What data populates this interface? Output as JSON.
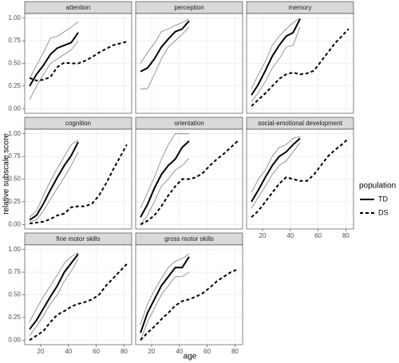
{
  "chart_data": {
    "type": "line",
    "xlabel": "age",
    "ylabel": "relative subscale score",
    "legend_title": "population",
    "xlim": [
      8.5,
      85.5
    ],
    "xticks": [
      20,
      40,
      60,
      80
    ],
    "ylim": [
      -0.05,
      1.05
    ],
    "yticks": [
      {
        "value": 0,
        "label": "0.00"
      },
      {
        "value": 0.25,
        "label": "0.25"
      },
      {
        "value": 0.5,
        "label": "0.50"
      },
      {
        "value": 0.75,
        "label": "0.75"
      },
      {
        "value": 1,
        "label": "1.00"
      }
    ],
    "grid": true,
    "panels": [
      {
        "title": "attention",
        "series": [
          {
            "name": "TD",
            "color": "#000000",
            "linestyle": "solid",
            "x": [
              12,
              17,
              22,
              27,
              32,
              37,
              42,
              47
            ],
            "values": [
              0.25,
              0.38,
              0.48,
              0.6,
              0.67,
              0.7,
              0.73,
              0.84
            ],
            "lower": [
              0.1,
              0.25,
              0.38,
              0.5,
              0.55,
              0.6,
              0.65,
              0.75
            ],
            "upper": [
              0.33,
              0.48,
              0.62,
              0.78,
              0.8,
              0.85,
              0.9,
              0.96
            ]
          },
          {
            "name": "DS",
            "color": "#000000",
            "linestyle": "dashed",
            "x": [
              12,
              17,
              22,
              27,
              32,
              37,
              42,
              47,
              52,
              57,
              62,
              67,
              72,
              77,
              82
            ],
            "values": [
              0.34,
              0.31,
              0.32,
              0.35,
              0.46,
              0.51,
              0.5,
              0.5,
              0.53,
              0.57,
              0.62,
              0.66,
              0.7,
              0.72,
              0.74
            ]
          }
        ]
      },
      {
        "title": "perception",
        "series": [
          {
            "name": "TD",
            "color": "#000000",
            "linestyle": "solid",
            "x": [
              12,
              17,
              22,
              27,
              32,
              37,
              42,
              47
            ],
            "values": [
              0.41,
              0.45,
              0.55,
              0.68,
              0.77,
              0.85,
              0.88,
              0.97
            ],
            "lower": [
              0.22,
              0.22,
              0.38,
              0.55,
              0.68,
              0.75,
              0.82,
              0.9
            ],
            "upper": [
              0.5,
              0.62,
              0.72,
              0.85,
              0.88,
              0.92,
              0.95,
              0.99
            ]
          }
        ]
      },
      {
        "title": "memory",
        "series": [
          {
            "name": "TD",
            "color": "#000000",
            "linestyle": "solid",
            "x": [
              12,
              17,
              22,
              27,
              32,
              37,
              42,
              47
            ],
            "values": [
              0.15,
              0.27,
              0.42,
              0.58,
              0.7,
              0.8,
              0.84,
              0.99
            ],
            "lower": [
              0.08,
              0.18,
              0.3,
              0.45,
              0.55,
              0.68,
              0.7,
              0.9
            ],
            "upper": [
              0.22,
              0.38,
              0.52,
              0.7,
              0.8,
              0.88,
              0.95,
              1.0
            ]
          },
          {
            "name": "DS",
            "color": "#000000",
            "linestyle": "dashed",
            "x": [
              12,
              17,
              22,
              27,
              32,
              37,
              42,
              47,
              52,
              57,
              62,
              67,
              72,
              77,
              82
            ],
            "values": [
              0.03,
              0.1,
              0.17,
              0.25,
              0.33,
              0.38,
              0.4,
              0.38,
              0.39,
              0.42,
              0.52,
              0.62,
              0.72,
              0.8,
              0.88
            ]
          }
        ]
      },
      {
        "title": "cognition",
        "series": [
          {
            "name": "TD",
            "color": "#000000",
            "linestyle": "solid",
            "x": [
              12,
              17,
              22,
              27,
              32,
              37,
              42,
              47
            ],
            "values": [
              0.05,
              0.1,
              0.23,
              0.38,
              0.52,
              0.65,
              0.76,
              0.91
            ],
            "lower": [
              0.03,
              0.05,
              0.15,
              0.28,
              0.4,
              0.52,
              0.65,
              0.8
            ],
            "upper": [
              0.08,
              0.15,
              0.32,
              0.48,
              0.62,
              0.75,
              0.88,
              0.93
            ]
          },
          {
            "name": "DS",
            "color": "#000000",
            "linestyle": "dashed",
            "x": [
              12,
              17,
              22,
              27,
              32,
              37,
              42,
              47,
              52,
              57,
              62,
              67,
              72,
              77,
              82
            ],
            "values": [
              0.01,
              0.02,
              0.03,
              0.06,
              0.1,
              0.12,
              0.19,
              0.2,
              0.2,
              0.23,
              0.32,
              0.45,
              0.6,
              0.74,
              0.88
            ]
          }
        ]
      },
      {
        "title": "orientation",
        "series": [
          {
            "name": "TD",
            "color": "#000000",
            "linestyle": "solid",
            "x": [
              12,
              17,
              22,
              27,
              32,
              37,
              42,
              47
            ],
            "values": [
              0.08,
              0.22,
              0.4,
              0.55,
              0.65,
              0.72,
              0.85,
              0.92
            ],
            "lower": [
              0.0,
              0.1,
              0.25,
              0.42,
              0.5,
              0.6,
              0.65,
              0.73
            ],
            "upper": [
              0.18,
              0.35,
              0.52,
              0.72,
              0.88,
              1.0,
              1.0,
              1.0
            ]
          },
          {
            "name": "DS",
            "color": "#000000",
            "linestyle": "dashed",
            "x": [
              12,
              17,
              22,
              27,
              32,
              37,
              42,
              47,
              52,
              57,
              62,
              67,
              72,
              77,
              82
            ],
            "values": [
              0.0,
              0.04,
              0.1,
              0.2,
              0.32,
              0.42,
              0.5,
              0.5,
              0.52,
              0.57,
              0.65,
              0.72,
              0.78,
              0.85,
              0.92
            ]
          }
        ]
      },
      {
        "title": "social-emotional development",
        "series": [
          {
            "name": "TD",
            "color": "#000000",
            "linestyle": "solid",
            "x": [
              12,
              17,
              22,
              27,
              32,
              37,
              42,
              47
            ],
            "values": [
              0.25,
              0.38,
              0.52,
              0.65,
              0.75,
              0.8,
              0.88,
              0.95
            ],
            "lower": [
              0.18,
              0.3,
              0.42,
              0.55,
              0.65,
              0.7,
              0.8,
              0.9
            ],
            "upper": [
              0.35,
              0.5,
              0.6,
              0.75,
              0.85,
              0.88,
              0.95,
              0.97
            ]
          },
          {
            "name": "DS",
            "color": "#000000",
            "linestyle": "dashed",
            "x": [
              12,
              17,
              22,
              27,
              32,
              37,
              42,
              47,
              52,
              57,
              62,
              67,
              72,
              77,
              82
            ],
            "values": [
              0.08,
              0.15,
              0.25,
              0.35,
              0.45,
              0.52,
              0.5,
              0.48,
              0.48,
              0.55,
              0.65,
              0.75,
              0.82,
              0.88,
              0.95
            ]
          }
        ]
      },
      {
        "title": "fine motor skills",
        "series": [
          {
            "name": "TD",
            "color": "#000000",
            "linestyle": "solid",
            "x": [
              12,
              17,
              22,
              27,
              32,
              37,
              42,
              47
            ],
            "values": [
              0.12,
              0.22,
              0.35,
              0.48,
              0.6,
              0.75,
              0.85,
              0.95
            ],
            "lower": [
              0.05,
              0.15,
              0.27,
              0.4,
              0.5,
              0.65,
              0.76,
              0.9
            ],
            "upper": [
              0.2,
              0.35,
              0.48,
              0.6,
              0.72,
              0.85,
              0.92,
              0.97
            ]
          },
          {
            "name": "DS",
            "color": "#000000",
            "linestyle": "dashed",
            "x": [
              12,
              17,
              22,
              27,
              32,
              37,
              42,
              47,
              52,
              57,
              62,
              67,
              72,
              77,
              82
            ],
            "values": [
              0.0,
              0.05,
              0.1,
              0.2,
              0.28,
              0.32,
              0.37,
              0.4,
              0.42,
              0.45,
              0.5,
              0.6,
              0.68,
              0.76,
              0.84
            ]
          }
        ]
      },
      {
        "title": "gross motor skills",
        "series": [
          {
            "name": "TD",
            "color": "#000000",
            "linestyle": "solid",
            "x": [
              12,
              17,
              22,
              27,
              32,
              37,
              42,
              47
            ],
            "values": [
              0.08,
              0.3,
              0.45,
              0.6,
              0.7,
              0.8,
              0.8,
              0.92
            ],
            "lower": [
              0.0,
              0.2,
              0.35,
              0.5,
              0.6,
              0.7,
              0.7,
              0.75
            ],
            "upper": [
              0.17,
              0.4,
              0.55,
              0.68,
              0.8,
              0.87,
              0.9,
              0.95
            ]
          },
          {
            "name": "DS",
            "color": "#000000",
            "linestyle": "dashed",
            "x": [
              12,
              17,
              22,
              27,
              32,
              37,
              42,
              47,
              52,
              57,
              62,
              67,
              72,
              77,
              82
            ],
            "values": [
              0.0,
              0.08,
              0.15,
              0.23,
              0.3,
              0.38,
              0.43,
              0.45,
              0.48,
              0.52,
              0.58,
              0.65,
              0.7,
              0.75,
              0.78
            ]
          }
        ]
      }
    ]
  }
}
